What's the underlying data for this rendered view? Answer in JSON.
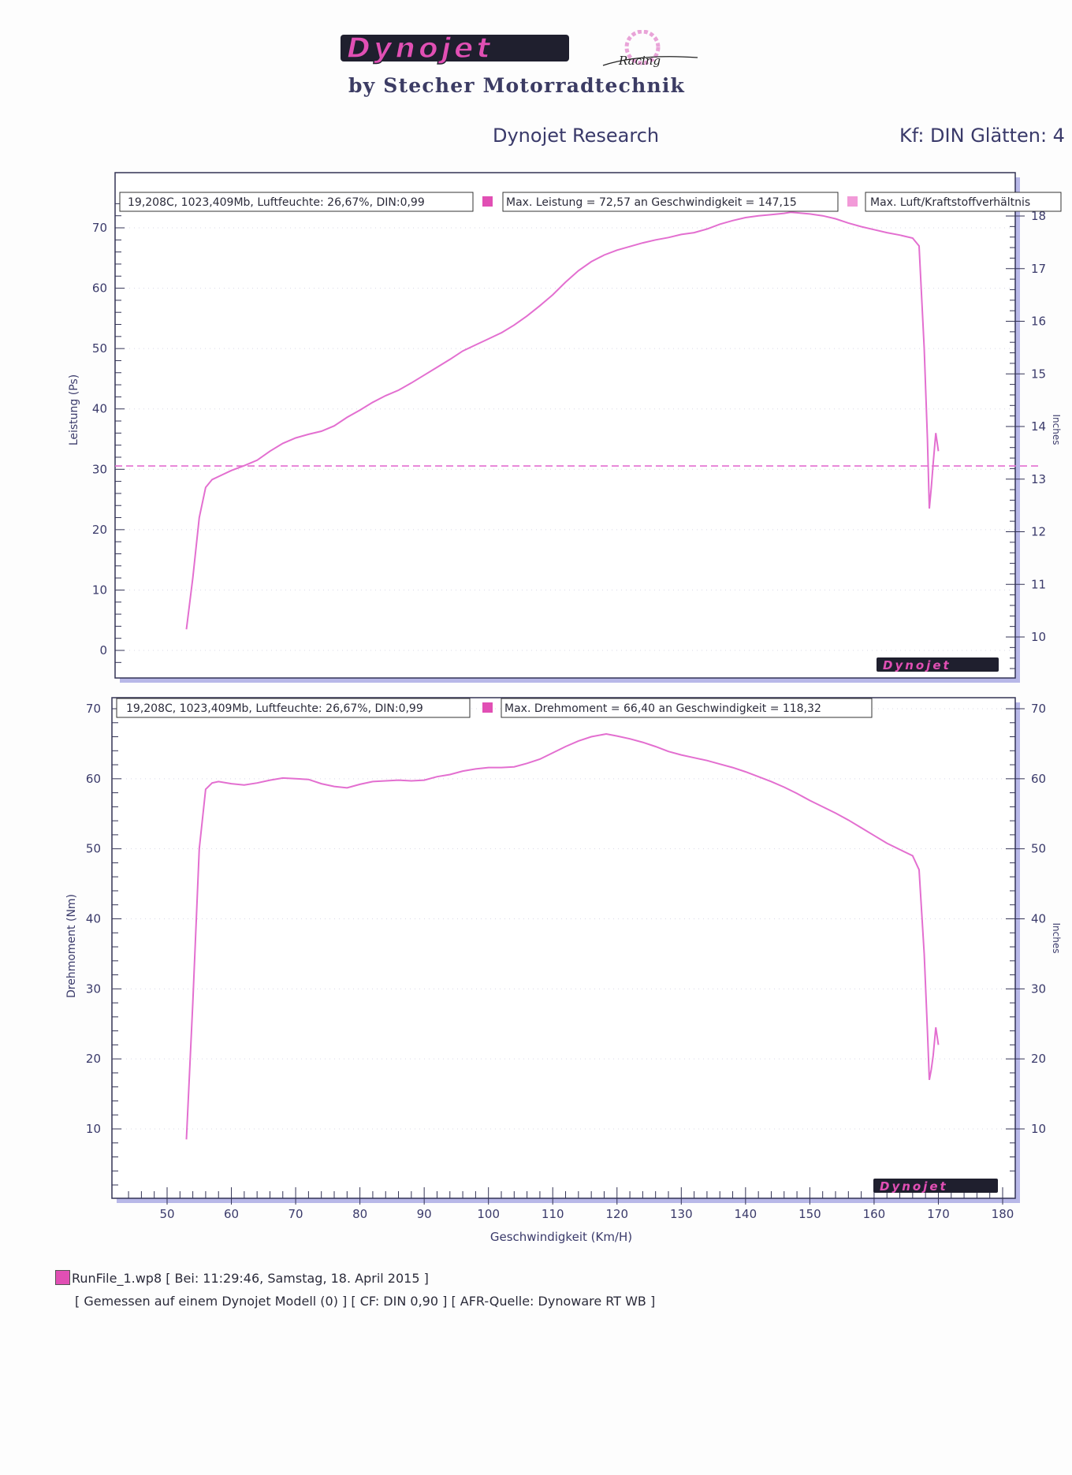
{
  "header": {
    "brand": "Dynojet",
    "racing_mark": "Racing",
    "dealer": "by Stecher Motorradtechnik",
    "subtitle": "Dynojet Research",
    "correction": "Kf: DIN Glätten: 4"
  },
  "colors": {
    "curve": "#e36fd0",
    "axis": "#333355",
    "frame_shadow": "#b8b8e8",
    "legend_swatch": "#e14fb4",
    "brand_fill": "#e14fb4"
  },
  "footer": {
    "run_file": "RunFile_1.wp8 [ Bei: 11:29:46, Samstag, 18. April 2015 ]",
    "details": "[ Gemessen auf einem Dynojet Modell (0) ]   [ CF: DIN 0,90 ]   [ AFR-Quelle: Dynoware RT WB ]"
  },
  "chart_data": [
    {
      "type": "line",
      "id": "power",
      "ylabel": "Leistung (Ps)",
      "y2label": "Inches",
      "ylim": [
        -4,
        77
      ],
      "yticks": [
        0,
        10,
        20,
        30,
        40,
        50,
        60,
        70
      ],
      "y2lim": [
        9.3,
        18.1
      ],
      "y2ticks": [
        10,
        11,
        12,
        13,
        14,
        15,
        16,
        17,
        18
      ],
      "xlim": [
        43,
        182
      ],
      "legend": {
        "conditions": "19,208C, 1023,409Mb, Luftfeuchte: 26,67%, DIN:0,99",
        "max_label": "Max. Leistung = 72,57 an Geschwindigkeit = 147,15",
        "afr_label": "Max. Luft/Kraftstoffverhältnis"
      },
      "series": [
        {
          "values_x": [
            53,
            54,
            55,
            56,
            57,
            58,
            60,
            62,
            64,
            66,
            68,
            70,
            72,
            74,
            76,
            78,
            80,
            82,
            84,
            86,
            88,
            90,
            92,
            94,
            96,
            98,
            100,
            102,
            104,
            106,
            108,
            110,
            112,
            114,
            116,
            118,
            120,
            122,
            124,
            126,
            128,
            130,
            132,
            134,
            136,
            138,
            140,
            142,
            144,
            146,
            147,
            148,
            150,
            152,
            154,
            156,
            158,
            160,
            162,
            164,
            166,
            167,
            167.8,
            168.3,
            168.6,
            168.9,
            169.2,
            169.6,
            170
          ],
          "values_y": [
            3.5,
            12,
            22,
            27,
            28.3,
            28.8,
            29.8,
            30.6,
            31.5,
            33.0,
            34.3,
            35.2,
            35.8,
            36.3,
            37.2,
            38.6,
            39.8,
            41.1,
            42.2,
            43.1,
            44.3,
            45.6,
            46.9,
            48.2,
            49.6,
            50.6,
            51.6,
            52.6,
            53.9,
            55.4,
            57.1,
            58.9,
            61.0,
            62.9,
            64.4,
            65.5,
            66.3,
            66.9,
            67.5,
            68.0,
            68.4,
            68.9,
            69.2,
            69.8,
            70.6,
            71.2,
            71.7,
            72.0,
            72.2,
            72.4,
            72.57,
            72.5,
            72.3,
            72.0,
            71.5,
            70.8,
            70.2,
            69.7,
            69.2,
            68.8,
            68.3,
            67.0,
            50,
            35,
            23.5,
            27,
            31,
            36,
            33
          ]
        }
      ],
      "afr_line_y2": 13.25
    },
    {
      "type": "line",
      "id": "torque",
      "ylabel": "Drehmoment (Nm)",
      "y2label": "Inches",
      "xlabel": "Geschwindigkeit (Km/H)",
      "ylim": [
        1,
        71
      ],
      "yticks": [
        10,
        20,
        30,
        40,
        50,
        60,
        70
      ],
      "y2ticks": [
        10,
        20,
        30,
        40,
        50,
        60,
        70
      ],
      "xlim": [
        43,
        182
      ],
      "xticks": [
        50,
        60,
        70,
        80,
        90,
        100,
        110,
        120,
        130,
        140,
        150,
        160,
        170,
        180
      ],
      "legend": {
        "conditions": "19,208C, 1023,409Mb, Luftfeuchte: 26,67%, DIN:0,99",
        "max_label": "Max. Drehmoment = 66,40 an Geschwindigkeit = 118,32"
      },
      "series": [
        {
          "values_x": [
            53,
            54,
            55,
            56,
            57,
            58,
            60,
            62,
            64,
            66,
            68,
            70,
            72,
            74,
            76,
            78,
            80,
            82,
            84,
            86,
            88,
            90,
            92,
            94,
            96,
            98,
            100,
            102,
            104,
            106,
            108,
            110,
            112,
            114,
            116,
            118.32,
            120,
            122,
            124,
            126,
            128,
            130,
            132,
            134,
            136,
            138,
            140,
            142,
            144,
            146,
            148,
            150,
            152,
            154,
            156,
            158,
            160,
            162,
            164,
            166,
            167,
            167.8,
            168.3,
            168.6,
            168.9,
            169.2,
            169.6,
            170
          ],
          "values_y": [
            8.5,
            28,
            50,
            58.5,
            59.4,
            59.6,
            59.3,
            59.1,
            59.4,
            59.8,
            60.1,
            60.0,
            59.9,
            59.3,
            58.9,
            58.7,
            59.2,
            59.6,
            59.7,
            59.8,
            59.7,
            59.8,
            60.3,
            60.6,
            61.1,
            61.4,
            61.6,
            61.6,
            61.7,
            62.2,
            62.8,
            63.7,
            64.6,
            65.4,
            66.0,
            66.4,
            66.1,
            65.7,
            65.2,
            64.6,
            63.9,
            63.4,
            63.0,
            62.6,
            62.1,
            61.6,
            61.0,
            60.3,
            59.6,
            58.8,
            57.9,
            56.9,
            56.0,
            55.1,
            54.1,
            53.0,
            51.9,
            50.8,
            49.9,
            49.0,
            47.0,
            35,
            24,
            17,
            18.5,
            20.5,
            24.5,
            22
          ]
        }
      ]
    }
  ]
}
